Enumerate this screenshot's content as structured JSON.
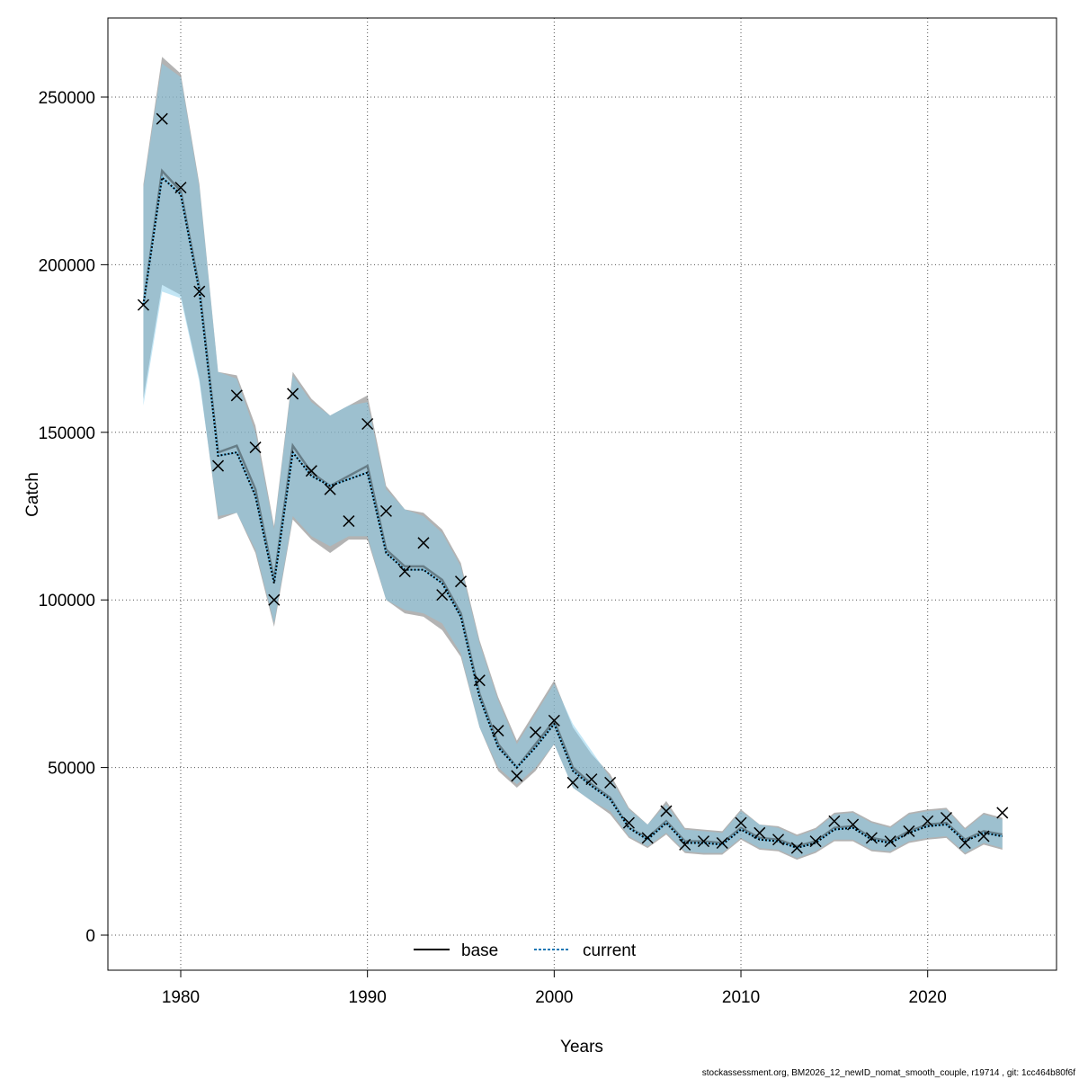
{
  "chart_data": {
    "type": "line",
    "title": "",
    "xlabel": "Years",
    "ylabel": "Catch",
    "xlim": [
      1976.1,
      2026.9
    ],
    "ylim": [
      -10460,
      273600
    ],
    "x_ticks": [
      1980,
      1990,
      2000,
      2010,
      2020
    ],
    "y_ticks": [
      0,
      50000,
      100000,
      150000,
      200000,
      250000
    ],
    "grid": true,
    "legend_placement": "bottom-center",
    "x": [
      1978,
      1979,
      1980,
      1981,
      1982,
      1983,
      1984,
      1985,
      1986,
      1987,
      1988,
      1989,
      1990,
      1991,
      1992,
      1993,
      1994,
      1995,
      1996,
      1997,
      1998,
      1999,
      2000,
      2001,
      2002,
      2003,
      2004,
      2005,
      2006,
      2007,
      2008,
      2009,
      2010,
      2011,
      2012,
      2013,
      2014,
      2015,
      2016,
      2017,
      2018,
      2019,
      2020,
      2021,
      2022,
      2023,
      2024
    ],
    "series": [
      {
        "name": "base",
        "color": "#000000",
        "band_color": "#808080",
        "values": [
          188000,
          228000,
          222000,
          193000,
          144000,
          146000,
          133000,
          106000,
          146000,
          138000,
          134000,
          137000,
          140000,
          115000,
          110000,
          110000,
          106000,
          96000,
          72000,
          57000,
          50000,
          57000,
          64000,
          50000,
          45000,
          41000,
          32000,
          29000,
          34000,
          28000,
          28000,
          27500,
          32000,
          29000,
          28500,
          26500,
          28000,
          32000,
          32500,
          29000,
          28000,
          31000,
          33000,
          33500,
          28500,
          31000,
          30000
        ],
        "upper": [
          224000,
          262000,
          257000,
          224000,
          168000,
          167000,
          152000,
          122000,
          168000,
          160000,
          155000,
          158000,
          161000,
          134000,
          127000,
          126000,
          121000,
          111000,
          88000,
          71000,
          58000,
          67000,
          76000,
          62000,
          54000,
          48000,
          38000,
          33000,
          40000,
          32000,
          31500,
          31000,
          37500,
          33000,
          32500,
          30000,
          32000,
          36500,
          37000,
          34000,
          32500,
          36500,
          37500,
          38000,
          32000,
          36500,
          35000
        ],
        "lower": [
          160000,
          194000,
          191000,
          166000,
          124000,
          126000,
          114000,
          92000,
          124000,
          118000,
          114000,
          118000,
          118000,
          100000,
          96000,
          95000,
          91000,
          83000,
          62000,
          49000,
          44000,
          49000,
          57000,
          44000,
          40000,
          36000,
          29000,
          26000,
          30000,
          24500,
          24000,
          24000,
          28500,
          25500,
          25000,
          22500,
          24500,
          28000,
          28000,
          25000,
          24500,
          27500,
          28500,
          29000,
          24000,
          27000,
          25500
        ]
      },
      {
        "name": "current",
        "color": "#1f78b4",
        "band_color": "#87ceeb",
        "values": [
          188000,
          226000,
          221000,
          192000,
          143000,
          144000,
          131000,
          105000,
          144000,
          137000,
          134000,
          136000,
          138000,
          114000,
          109000,
          109000,
          105000,
          95000,
          71000,
          56000,
          50000,
          56000,
          63000,
          49000,
          44500,
          40500,
          32000,
          28500,
          33500,
          27500,
          27500,
          27000,
          31500,
          28500,
          28000,
          26000,
          27500,
          31500,
          32000,
          28500,
          27500,
          30500,
          32500,
          33000,
          28000,
          30500,
          29500
        ],
        "upper": [
          223000,
          260000,
          256000,
          223000,
          168000,
          166000,
          150000,
          121000,
          167000,
          159000,
          155000,
          158000,
          159000,
          133000,
          127000,
          125000,
          120000,
          110000,
          87000,
          70000,
          57000,
          66000,
          75000,
          63000,
          55000,
          47000,
          37500,
          33000,
          39000,
          31500,
          31000,
          30500,
          37000,
          33000,
          32000,
          29500,
          31500,
          36000,
          36500,
          33500,
          32000,
          36000,
          37000,
          37500,
          31500,
          36000,
          34500
        ],
        "lower": [
          158000,
          192000,
          190000,
          165000,
          125000,
          126000,
          115000,
          93000,
          125000,
          119000,
          116000,
          119000,
          119000,
          100000,
          97000,
          96000,
          93000,
          84000,
          62000,
          50000,
          45000,
          50000,
          57000,
          44000,
          40000,
          37000,
          29500,
          26500,
          30500,
          25000,
          24500,
          24500,
          29000,
          26000,
          25500,
          23000,
          25000,
          28500,
          28500,
          25500,
          25000,
          28000,
          29000,
          29500,
          24500,
          27500,
          26000
        ]
      }
    ],
    "observed": {
      "marker": "x",
      "values": [
        188000,
        243500,
        223000,
        192000,
        140000,
        161000,
        145500,
        100000,
        161500,
        138500,
        133000,
        123500,
        152500,
        126500,
        108500,
        117000,
        101500,
        105500,
        76000,
        61000,
        47500,
        60500,
        64000,
        45500,
        46500,
        45500,
        33500,
        29000,
        37000,
        27000,
        28000,
        27500,
        33500,
        30500,
        28500,
        26000,
        28000,
        34000,
        33000,
        29000,
        28000,
        31000,
        34000,
        35000,
        27500,
        29500,
        36500
      ]
    },
    "legend": [
      "base",
      "current"
    ],
    "footer": "stockassessment.org, BM2026_12_newID_nomat_smooth_couple, r19714 , git: 1cc464b80f6f"
  }
}
